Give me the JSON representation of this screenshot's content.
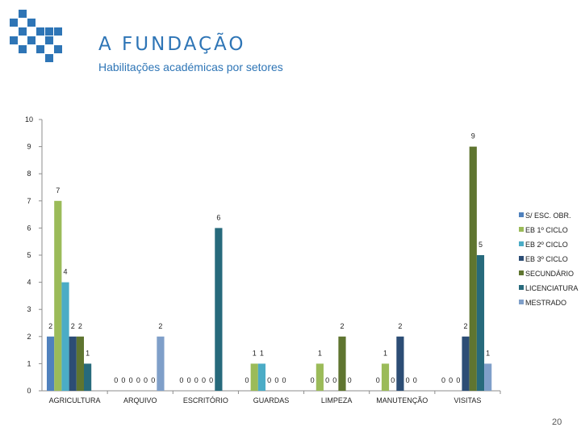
{
  "header": {
    "title": "A FUNDAÇÃO",
    "subtitle": "Habilitações académicas por setores",
    "logo_icon": "fundacao-squares-logo"
  },
  "page_number": "20",
  "chart_data": {
    "type": "bar",
    "categories": [
      "AGRICULTURA",
      "ARQUIVO",
      "ESCRITÓRIO",
      "GUARDAS",
      "LIMPEZA",
      "MANUTENÇÃO",
      "VISITAS"
    ],
    "y_ticks": [
      "0",
      "1",
      "2",
      "3",
      "4",
      "5",
      "6",
      "7",
      "8",
      "9",
      "10"
    ],
    "ylim": [
      0,
      10
    ],
    "grid": false,
    "legend_position": "right",
    "series": [
      {
        "name": "S/ ESC. OBR.",
        "color": "#4f81bd",
        "values": [
          2,
          0,
          0,
          0,
          0,
          0,
          0
        ]
      },
      {
        "name": "EB 1º CICLO",
        "color": "#9bbb59",
        "values": [
          7,
          0,
          0,
          1,
          1,
          1,
          0
        ]
      },
      {
        "name": "EB 2º CICLO",
        "color": "#4bacc6",
        "values": [
          4,
          0,
          0,
          1,
          0,
          0,
          0
        ]
      },
      {
        "name": "EB 3º CICLO",
        "color": "#2c4d75",
        "values": [
          2,
          0,
          0,
          0,
          0,
          2,
          2
        ]
      },
      {
        "name": "SECUNDÁRIO",
        "color": "#5f7530",
        "values": [
          2,
          0,
          0,
          0,
          2,
          0,
          9
        ]
      },
      {
        "name": "LICENCIATURA",
        "color": "#276a7c",
        "values": [
          1,
          0,
          6,
          0,
          0,
          0,
          5
        ]
      },
      {
        "name": "MESTRADO",
        "color": "#7f9fc9",
        "values": [
          null,
          2,
          null,
          null,
          null,
          null,
          1
        ]
      }
    ]
  }
}
